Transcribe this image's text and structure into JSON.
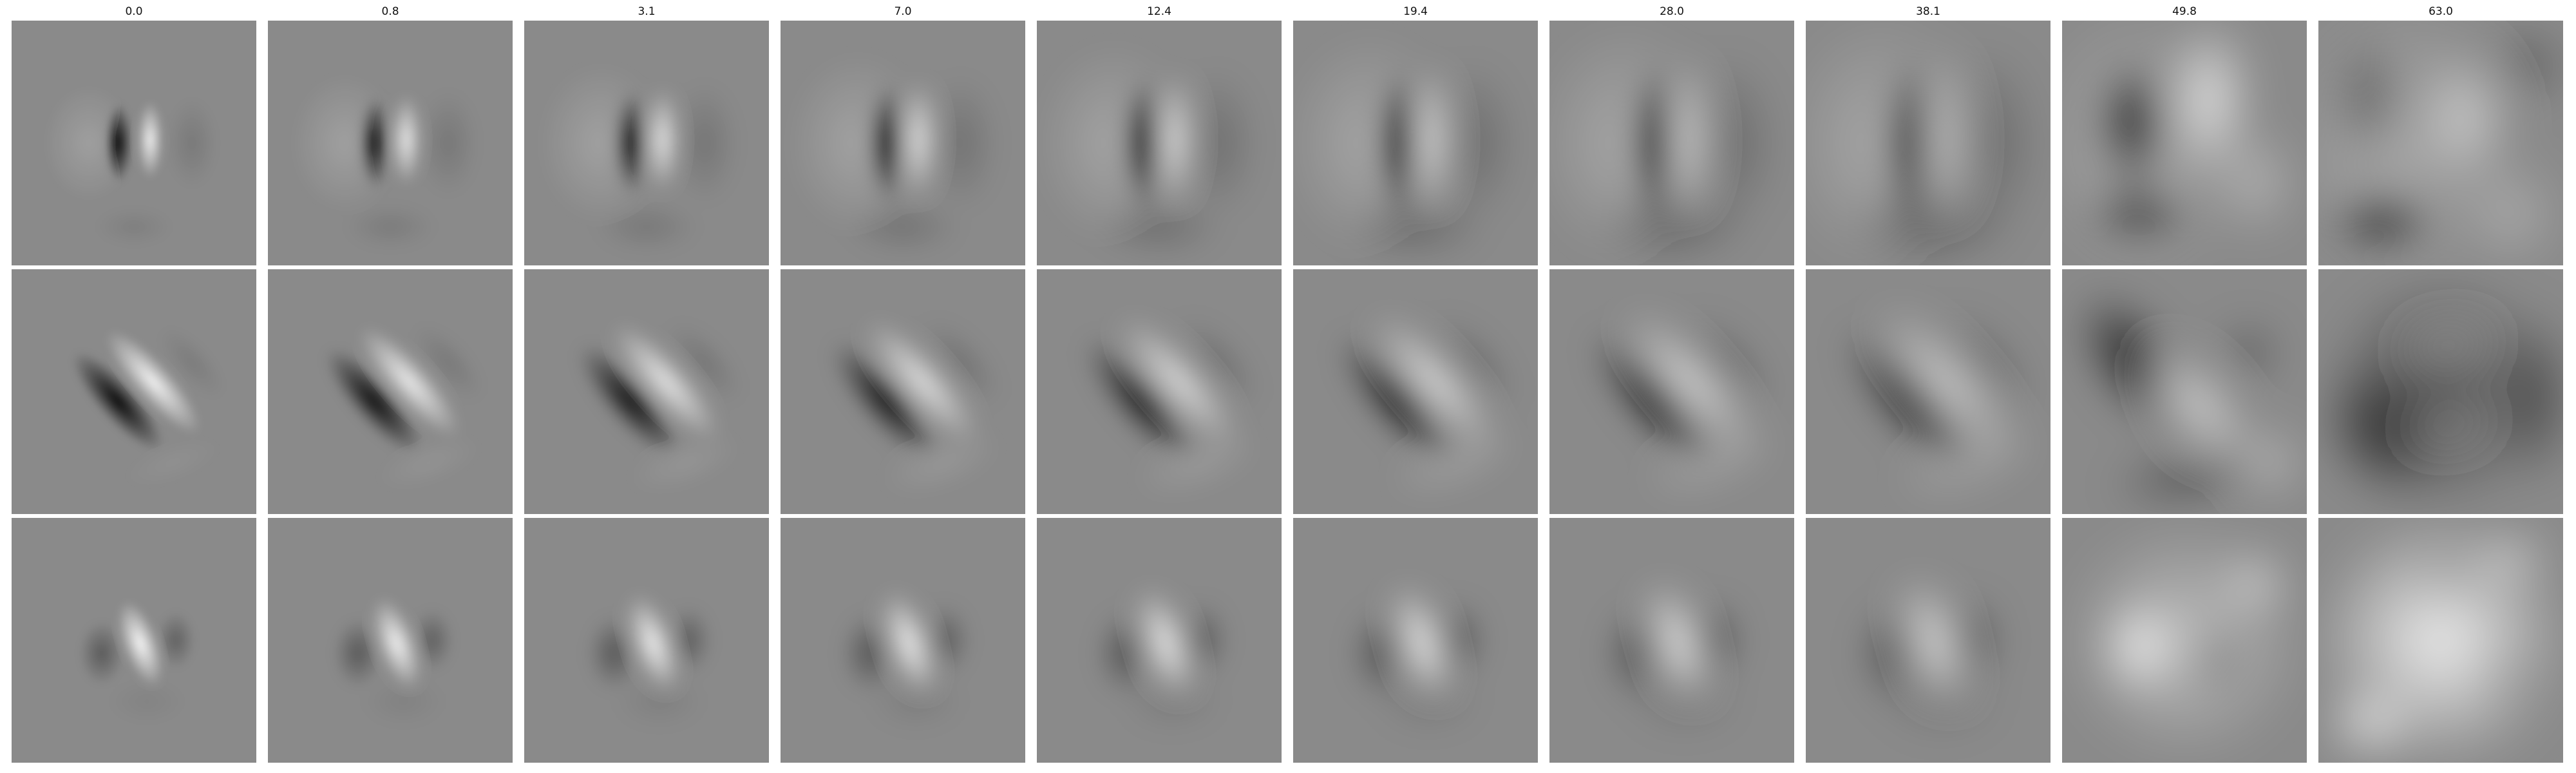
{
  "figure": {
    "column_titles": [
      "0.0",
      "0.8",
      "3.1",
      "7.0",
      "12.4",
      "19.4",
      "28.0",
      "38.1",
      "49.8",
      "63.0"
    ],
    "rows": 3,
    "colormap": "grayscale",
    "colors": {
      "page_background": "#ffffff",
      "panel_mid_gray": "#8a8a8a",
      "dark": "#000000",
      "light": "#ffffff"
    }
  }
}
